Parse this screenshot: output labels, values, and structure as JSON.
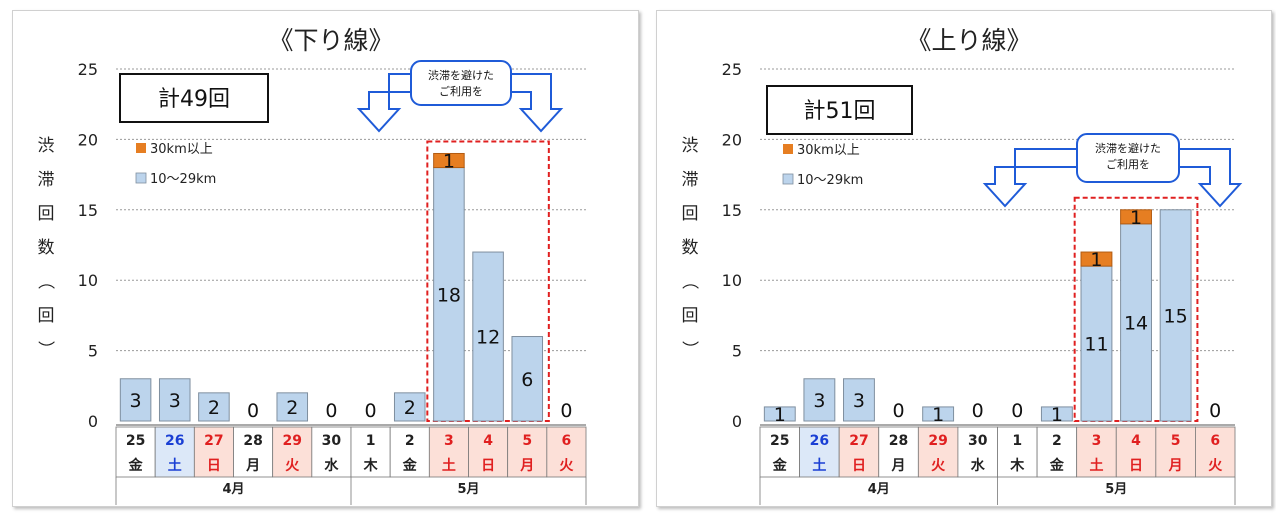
{
  "colors": {
    "base": "#bcd4ec",
    "base_stroke": "#7f8f9f",
    "top": "#e67e22",
    "weekday": "#222222",
    "saturday": "#1a3fd4",
    "holiday": "#e02020",
    "sat_bg": "#dce8f8",
    "hol_bg": "#fce0d8",
    "highlight": "#e02020",
    "arrow": "#1f5bd8"
  },
  "chart_data": [
    {
      "type": "bar",
      "stacked": true,
      "title": "《下り線》",
      "ylabel": "渋滞回数（回）",
      "ylim": [
        0,
        25
      ],
      "yticks": [
        "0",
        "5",
        "10",
        "15",
        "20",
        "25"
      ],
      "total_label": "計49回",
      "categories": [
        {
          "day": "25",
          "wd": "金",
          "type": "weekday"
        },
        {
          "day": "26",
          "wd": "土",
          "type": "saturday"
        },
        {
          "day": "27",
          "wd": "日",
          "type": "holiday"
        },
        {
          "day": "28",
          "wd": "月",
          "type": "weekday"
        },
        {
          "day": "29",
          "wd": "火",
          "type": "holiday"
        },
        {
          "day": "30",
          "wd": "水",
          "type": "weekday"
        },
        {
          "day": "1",
          "wd": "木",
          "type": "weekday"
        },
        {
          "day": "2",
          "wd": "金",
          "type": "weekday"
        },
        {
          "day": "3",
          "wd": "土",
          "type": "holiday"
        },
        {
          "day": "4",
          "wd": "日",
          "type": "holiday"
        },
        {
          "day": "5",
          "wd": "月",
          "type": "holiday"
        },
        {
          "day": "6",
          "wd": "火",
          "type": "holiday"
        }
      ],
      "months": [
        {
          "label": "4月",
          "span": 6
        },
        {
          "label": "5月",
          "span": 6
        }
      ],
      "series": [
        {
          "name": "10〜29km",
          "values": [
            3,
            3,
            2,
            0,
            2,
            0,
            0,
            2,
            18,
            12,
            6,
            0
          ]
        },
        {
          "name": "30km以上",
          "values": [
            0,
            0,
            0,
            0,
            0,
            0,
            0,
            0,
            1,
            0,
            0,
            0
          ]
        }
      ],
      "highlight": {
        "from": 8,
        "to": 10
      },
      "callout": [
        "渋滞を避けた",
        "ご利用を"
      ]
    },
    {
      "type": "bar",
      "stacked": true,
      "title": "《上り線》",
      "ylabel": "渋滞回数（回）",
      "ylim": [
        0,
        25
      ],
      "yticks": [
        "0",
        "5",
        "10",
        "15",
        "20",
        "25"
      ],
      "total_label": "計51回",
      "categories": [
        {
          "day": "25",
          "wd": "金",
          "type": "weekday"
        },
        {
          "day": "26",
          "wd": "土",
          "type": "saturday"
        },
        {
          "day": "27",
          "wd": "日",
          "type": "holiday"
        },
        {
          "day": "28",
          "wd": "月",
          "type": "weekday"
        },
        {
          "day": "29",
          "wd": "火",
          "type": "holiday"
        },
        {
          "day": "30",
          "wd": "水",
          "type": "weekday"
        },
        {
          "day": "1",
          "wd": "木",
          "type": "weekday"
        },
        {
          "day": "2",
          "wd": "金",
          "type": "weekday"
        },
        {
          "day": "3",
          "wd": "土",
          "type": "holiday"
        },
        {
          "day": "4",
          "wd": "日",
          "type": "holiday"
        },
        {
          "day": "5",
          "wd": "月",
          "type": "holiday"
        },
        {
          "day": "6",
          "wd": "火",
          "type": "holiday"
        }
      ],
      "months": [
        {
          "label": "4月",
          "span": 6
        },
        {
          "label": "5月",
          "span": 6
        }
      ],
      "series": [
        {
          "name": "10〜29km",
          "values": [
            1,
            3,
            3,
            0,
            1,
            0,
            0,
            1,
            11,
            14,
            15,
            0
          ]
        },
        {
          "name": "30km以上",
          "values": [
            0,
            0,
            0,
            0,
            0,
            0,
            0,
            0,
            1,
            1,
            0,
            0
          ]
        }
      ],
      "highlight": {
        "from": 8,
        "to": 10
      },
      "callout": [
        "渋滞を避けた",
        "ご利用を"
      ]
    }
  ]
}
